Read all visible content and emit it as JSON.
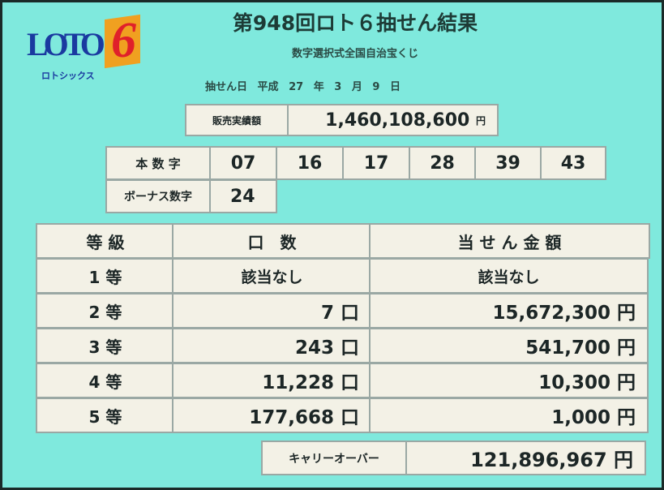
{
  "logo": {
    "text": "LOTO",
    "digit": "6",
    "kana": "ロトシックス"
  },
  "title": "第948回ロト６抽せん結果",
  "subtitle": "数字選択式全国自治宝くじ",
  "draw_date": {
    "label": "抽せん日",
    "era": "平成",
    "year": "27",
    "year_unit": "年",
    "month": "3",
    "month_unit": "月",
    "day": "9",
    "day_unit": "日"
  },
  "sales": {
    "label": "販売実績額",
    "value": "1,460,108,600",
    "unit": "円"
  },
  "main_numbers": {
    "label": "本 数 字",
    "values": [
      "07",
      "16",
      "17",
      "28",
      "39",
      "43"
    ]
  },
  "bonus": {
    "label": "ボーナス数字",
    "value": "24"
  },
  "prize_table": {
    "headers": [
      "等 級",
      "口　数",
      "当 せ ん 金 額"
    ],
    "rows": [
      {
        "rank": "1 等",
        "count": "該当なし",
        "amount": "該当なし"
      },
      {
        "rank": "2 等",
        "count": "7 口",
        "amount": "15,672,300 円"
      },
      {
        "rank": "3 等",
        "count": "243 口",
        "amount": "541,700 円"
      },
      {
        "rank": "4 等",
        "count": "11,228 口",
        "amount": "10,300 円"
      },
      {
        "rank": "5 等",
        "count": "177,668 口",
        "amount": "1,000 円"
      }
    ]
  },
  "carryover": {
    "label": "キャリーオーバー",
    "value": "121,896,967 円"
  },
  "colors": {
    "background": "#7fe9dd",
    "cell": "#f3f1e6",
    "logo_blue": "#1a3aa0",
    "logo_red": "#e0202a",
    "logo_orange": "#f0a020"
  }
}
